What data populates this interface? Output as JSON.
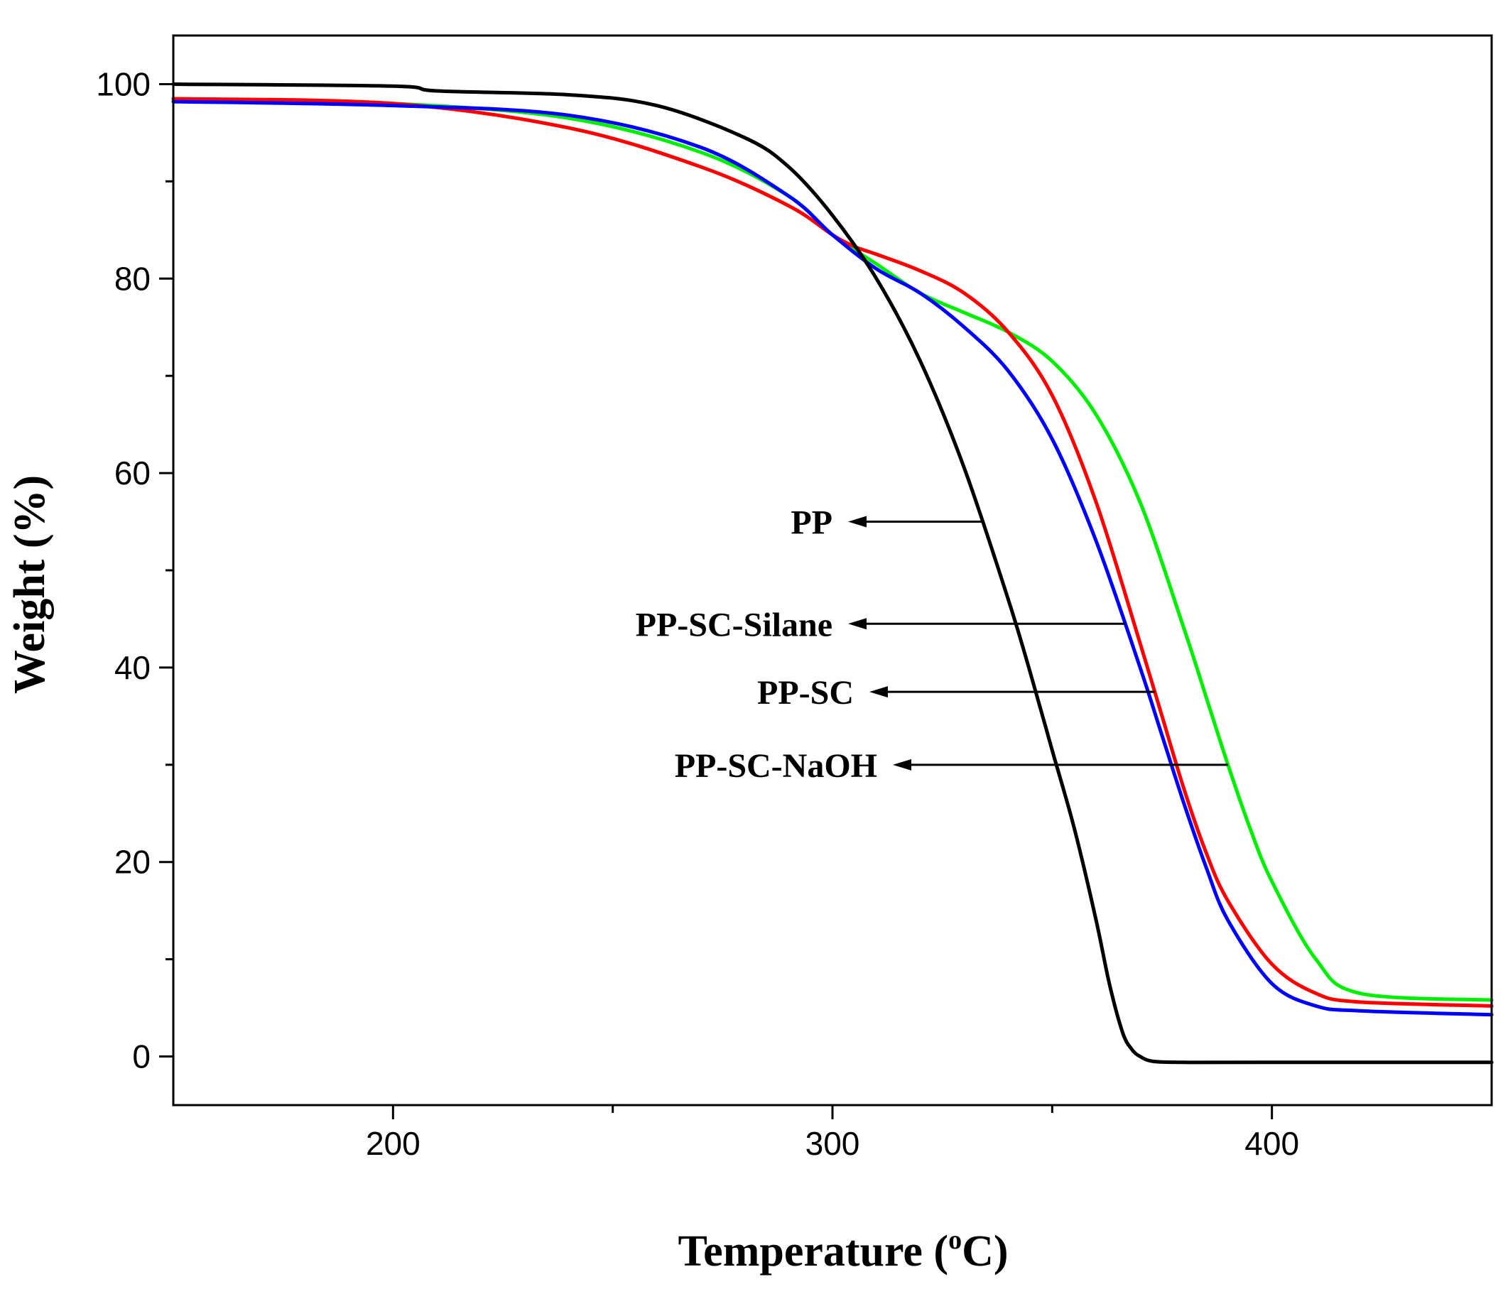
{
  "chart_data": {
    "type": "line",
    "title": "",
    "xlabel": "Temperature (",
    "xlabel_superscript": "o",
    "xlabel_suffix": "C)",
    "ylabel": "Weight (%)",
    "xlim": [
      150,
      450
    ],
    "ylim": [
      -5,
      105
    ],
    "xticks": [
      200,
      300,
      400
    ],
    "xminor": [
      250,
      350
    ],
    "yticks": [
      0,
      20,
      40,
      60,
      80,
      100
    ],
    "yminor": [
      10,
      30,
      50,
      70,
      90
    ],
    "grid": false,
    "series": [
      {
        "name": "PP",
        "color": "#000000",
        "x": [
          150,
          200,
          210,
          240,
          260,
          280,
          290,
          300,
          310,
          320,
          330,
          340,
          345,
          350,
          355,
          360,
          363,
          366,
          368,
          370,
          373,
          380,
          400,
          450
        ],
        "y": [
          100,
          99.8,
          99.3,
          98.9,
          97.8,
          94.5,
          91.5,
          86.5,
          80,
          71.5,
          60.5,
          47,
          39.5,
          31.5,
          23.5,
          14,
          7.5,
          2.5,
          0.8,
          0,
          -0.5,
          -0.6,
          -0.6,
          -0.6
        ]
      },
      {
        "name": "PP-SC",
        "color": "#ff0000",
        "x": [
          150,
          200,
          240,
          270,
          290,
          300,
          305,
          310,
          320,
          330,
          340,
          350,
          360,
          370,
          375,
          380,
          385,
          390,
          400,
          410,
          420,
          450
        ],
        "y": [
          98.5,
          98,
          95.5,
          91.5,
          87.5,
          84.5,
          83.3,
          82.5,
          80.8,
          78.5,
          74.5,
          68,
          57,
          42.5,
          35,
          27.5,
          21,
          16,
          9.5,
          6.5,
          5.6,
          5.2
        ]
      },
      {
        "name": "PP-SC-NaOH",
        "color": "#00ee00",
        "x": [
          150,
          200,
          240,
          270,
          290,
          300,
          310,
          320,
          330,
          340,
          350,
          360,
          370,
          380,
          385,
          390,
          395,
          400,
          410,
          420,
          450
        ],
        "y": [
          98.5,
          98,
          96.5,
          93,
          88.5,
          84.5,
          81.5,
          78.5,
          76.5,
          74.5,
          71.5,
          66,
          57,
          44,
          37,
          30,
          23.5,
          18,
          10,
          6.5,
          5.8
        ]
      },
      {
        "name": "PP-SC-Silane",
        "color": "#0000ff",
        "x": [
          150,
          200,
          240,
          270,
          290,
          300,
          310,
          320,
          330,
          340,
          350,
          360,
          370,
          375,
          380,
          385,
          390,
          400,
          410,
          420,
          450
        ],
        "y": [
          98.2,
          97.8,
          96.8,
          93.5,
          88.5,
          84.5,
          81,
          78.5,
          75,
          70.5,
          63.5,
          53,
          40,
          33,
          26,
          19.5,
          14,
          7.5,
          5.2,
          4.7,
          4.3
        ]
      }
    ],
    "annotations": [
      {
        "text": "PP",
        "target_series": "PP",
        "arrow_y": 55
      },
      {
        "text": "PP-SC-Silane",
        "target_series": "PP-SC-Silane",
        "arrow_y": 44.5
      },
      {
        "text": "PP-SC",
        "target_series": "PP-SC",
        "arrow_y": 37.5
      },
      {
        "text": "PP-SC-NaOH",
        "target_series": "PP-SC-NaOH",
        "arrow_y": 30
      }
    ]
  }
}
